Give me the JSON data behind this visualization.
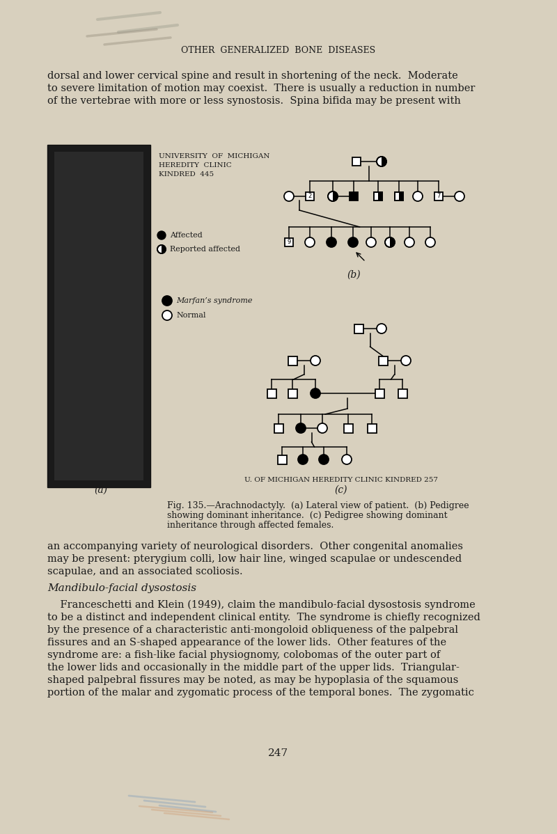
{
  "bg_color": "#d8d0be",
  "text_color": "#1a1a1a",
  "page_title": "OTHER  GENERALIZED  BONE  DISEASES",
  "para1_lines": [
    "dorsal and lower cervical spine and result in shortening of the neck.  Moderate",
    "to severe limitation of motion may coexist.  There is usually a reduction in number",
    "of the vertebrae with more or less synostosis.  Spina bifida may be present with"
  ],
  "para2_lines": [
    "an accompanying variety of neurological disorders.  Other congenital anomalies",
    "may be present: pterygium colli, low hair line, winged scapulae or undescended",
    "scapulae, and an associated scoliosis."
  ],
  "section_title": "Mandibulo-facial dysostosis",
  "para3_lines": [
    "    Franceschetti and Klein (1949), claim the mandibulo-facial dysostosis syndrome",
    "to be a distinct and independent clinical entity.  The syndrome is chiefly recognized",
    "by the presence of a characteristic anti-mongoloid obliqueness of the palpebral",
    "fissures and an S-shaped appearance of the lower lids.  Other features of the",
    "syndrome are: a fish-like facial physiognomy, colobomas of the outer part of",
    "the lower lids and occasionally in the middle part of the upper lids.  Triangular-",
    "shaped palpebral fissures may be noted, as may be hypoplasia of the squamous",
    "portion of the malar and zygomatic process of the temporal bones.  The zygomatic"
  ],
  "page_number": "247",
  "caption_lines": [
    "Fig. 135.—Arachnodactyly.  (a) Lateral view of patient.  (b) Pedigree",
    "showing dominant inheritance.  (c) Pedigree showing dominant",
    "inheritance through affected females."
  ],
  "kindred445_lines": [
    "UNIVERSITY  OF  MICHIGAN",
    "HEREDITY  CLINIC",
    "KINDRED  445"
  ],
  "kindred257_label": "U. OF MICHIGAN HEREDITY CLINIC KINDRED 257",
  "label_a": "(a)",
  "label_b": "(b)",
  "label_c": "(c)",
  "legend1_affected": "Affected",
  "legend1_reported": "Reported affected",
  "legend2_marfan": "Marfan’s syndrome",
  "legend2_normal": "Normal"
}
